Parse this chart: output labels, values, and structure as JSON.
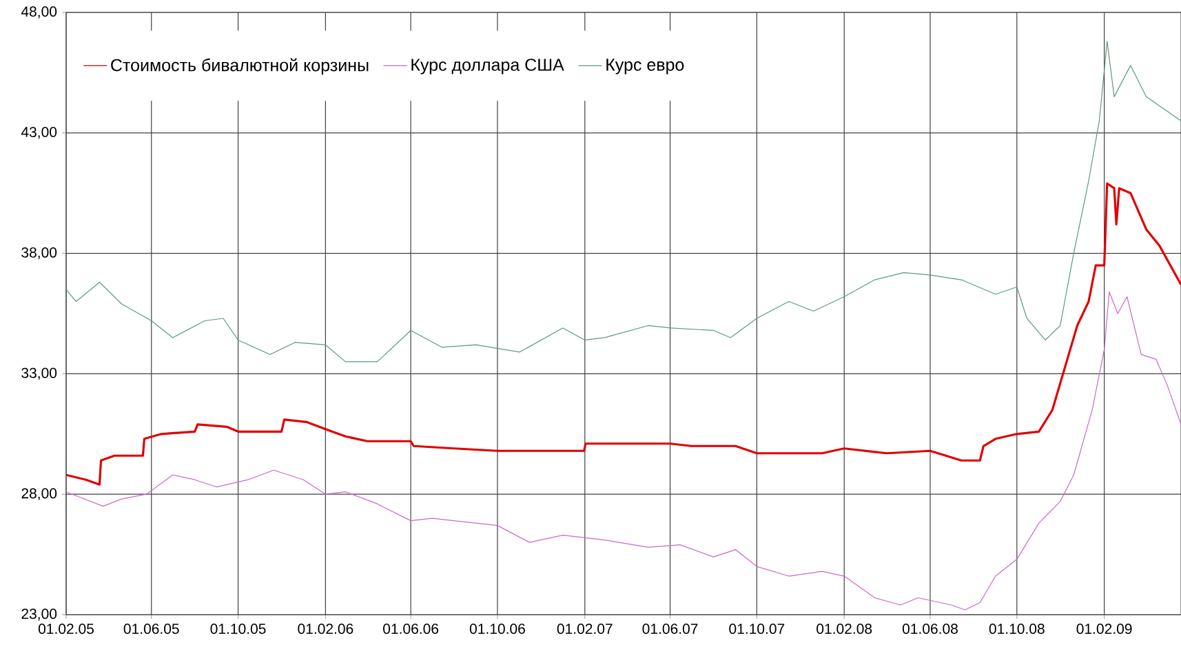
{
  "chart_data": {
    "type": "line",
    "series": [
      {
        "name": "Стоимость бивалютной корзины",
        "color": "#e00000",
        "x": [
          "2005-02-01",
          "2005-03-01",
          "2005-03-20",
          "2005-03-22",
          "2005-04-10",
          "2005-05-20",
          "2005-05-22",
          "2005-06-15",
          "2005-08-01",
          "2005-08-05",
          "2005-09-15",
          "2005-10-01",
          "2005-12-01",
          "2005-12-05",
          "2006-01-05",
          "2006-02-01",
          "2006-03-01",
          "2006-04-01",
          "2006-06-01",
          "2006-06-05",
          "2006-08-01",
          "2006-10-01",
          "2007-01-31",
          "2007-02-02",
          "2007-06-01",
          "2007-07-01",
          "2007-09-01",
          "2007-10-01",
          "2008-01-01",
          "2008-02-01",
          "2008-04-01",
          "2008-06-01",
          "2008-07-15",
          "2008-08-10",
          "2008-08-15",
          "2008-09-01",
          "2008-10-01",
          "2008-11-01",
          "2008-11-20",
          "2008-12-10",
          "2008-12-25",
          "2009-01-10",
          "2009-01-20",
          "2009-02-01",
          "2009-02-05",
          "2009-02-15",
          "2009-02-18",
          "2009-02-22",
          "2009-03-10",
          "2009-04-01",
          "2009-04-20",
          "2009-05-20"
        ],
        "values": [
          28.8,
          28.6,
          28.4,
          29.4,
          29.6,
          29.6,
          30.3,
          30.5,
          30.6,
          30.9,
          30.8,
          30.6,
          30.6,
          31.1,
          31.0,
          30.7,
          30.4,
          30.2,
          30.2,
          30.0,
          29.9,
          29.8,
          29.8,
          30.1,
          30.1,
          30.0,
          30.0,
          29.7,
          29.7,
          29.9,
          29.7,
          29.8,
          29.4,
          29.4,
          30.0,
          30.3,
          30.5,
          30.6,
          31.5,
          33.5,
          35.0,
          36.0,
          37.5,
          37.5,
          40.9,
          40.7,
          39.2,
          40.7,
          40.5,
          39.0,
          38.3,
          36.7
        ]
      },
      {
        "name": "Курс доллара США",
        "color": "#cc66cc",
        "x": [
          "2005-02-01",
          "2005-03-25",
          "2005-04-20",
          "2005-05-25",
          "2005-07-01",
          "2005-08-01",
          "2005-09-01",
          "2005-10-15",
          "2005-11-20",
          "2006-01-01",
          "2006-02-01",
          "2006-03-01",
          "2006-04-15",
          "2006-06-01",
          "2006-07-01",
          "2006-09-01",
          "2006-10-01",
          "2006-11-15",
          "2007-01-01",
          "2007-03-01",
          "2007-05-01",
          "2007-06-15",
          "2007-08-01",
          "2007-09-01",
          "2007-10-01",
          "2007-11-15",
          "2008-01-01",
          "2008-02-01",
          "2008-03-15",
          "2008-04-20",
          "2008-05-15",
          "2008-07-01",
          "2008-07-20",
          "2008-08-10",
          "2008-09-01",
          "2008-10-01",
          "2008-11-01",
          "2008-12-01",
          "2008-12-20",
          "2009-01-15",
          "2009-02-01",
          "2009-02-08",
          "2009-02-20",
          "2009-03-05",
          "2009-03-25",
          "2009-04-15",
          "2009-05-01",
          "2009-05-20"
        ],
        "values": [
          28.1,
          27.5,
          27.8,
          28.0,
          28.8,
          28.6,
          28.3,
          28.6,
          29.0,
          28.6,
          28.0,
          28.1,
          27.6,
          26.9,
          27.0,
          26.8,
          26.7,
          26.0,
          26.3,
          26.1,
          25.8,
          25.9,
          25.4,
          25.7,
          25.0,
          24.6,
          24.8,
          24.6,
          23.7,
          23.4,
          23.7,
          23.4,
          23.2,
          23.5,
          24.6,
          25.3,
          26.8,
          27.7,
          28.8,
          31.5,
          34.0,
          36.4,
          35.5,
          36.2,
          33.8,
          33.6,
          32.5,
          30.9
        ]
      },
      {
        "name": "Курс евро",
        "color": "#5a9a7a",
        "x": [
          "2005-02-01",
          "2005-02-15",
          "2005-03-20",
          "2005-04-20",
          "2005-06-01",
          "2005-07-01",
          "2005-08-15",
          "2005-09-10",
          "2005-10-01",
          "2005-11-15",
          "2005-12-20",
          "2006-02-01",
          "2006-03-01",
          "2006-04-15",
          "2006-06-01",
          "2006-07-15",
          "2006-09-01",
          "2006-11-01",
          "2007-01-01",
          "2007-02-01",
          "2007-03-01",
          "2007-05-01",
          "2007-06-01",
          "2007-08-01",
          "2007-08-25",
          "2007-10-01",
          "2007-11-15",
          "2007-12-20",
          "2008-02-01",
          "2008-03-15",
          "2008-04-25",
          "2008-06-01",
          "2008-07-15",
          "2008-09-01",
          "2008-10-01",
          "2008-10-15",
          "2008-11-10",
          "2008-12-01",
          "2008-12-20",
          "2009-01-10",
          "2009-01-25",
          "2009-02-05",
          "2009-02-15",
          "2009-03-10",
          "2009-04-01",
          "2009-05-20"
        ],
        "values": [
          36.5,
          36.0,
          36.8,
          35.9,
          35.2,
          34.5,
          35.2,
          35.3,
          34.4,
          33.8,
          34.3,
          34.2,
          33.5,
          33.5,
          34.8,
          34.1,
          34.2,
          33.9,
          34.9,
          34.4,
          34.5,
          35.0,
          34.9,
          34.8,
          34.5,
          35.3,
          36.0,
          35.6,
          36.2,
          36.9,
          37.2,
          37.1,
          36.9,
          36.3,
          36.6,
          35.3,
          34.4,
          35.0,
          38.0,
          41.0,
          43.5,
          46.8,
          44.5,
          45.8,
          44.5,
          43.5
        ]
      }
    ],
    "xlim": [
      "2005-02-01",
      "2009-05-20"
    ],
    "xticks": [
      {
        "value": "2005-02-01",
        "label": "01.02.05"
      },
      {
        "value": "2005-06-01",
        "label": "01.06.05"
      },
      {
        "value": "2005-10-01",
        "label": "01.10.05"
      },
      {
        "value": "2006-02-01",
        "label": "01.02.06"
      },
      {
        "value": "2006-06-01",
        "label": "01.06.06"
      },
      {
        "value": "2006-10-01",
        "label": "01.10.06"
      },
      {
        "value": "2007-02-01",
        "label": "01.02.07"
      },
      {
        "value": "2007-06-01",
        "label": "01.06.07"
      },
      {
        "value": "2007-10-01",
        "label": "01.10.07"
      },
      {
        "value": "2008-02-01",
        "label": "01.02.08"
      },
      {
        "value": "2008-06-01",
        "label": "01.06.08"
      },
      {
        "value": "2008-10-01",
        "label": "01.10.08"
      },
      {
        "value": "2009-02-01",
        "label": "01.02.09"
      }
    ],
    "ylim": [
      23,
      48
    ],
    "yticks": [
      {
        "value": 23,
        "label": "23,00"
      },
      {
        "value": 28,
        "label": "28,00"
      },
      {
        "value": 33,
        "label": "33,00"
      },
      {
        "value": 38,
        "label": "38,00"
      },
      {
        "value": 43,
        "label": "43,00"
      },
      {
        "value": 48,
        "label": "48,00"
      }
    ],
    "grid": true,
    "legend": "top left",
    "marker": "none",
    "line_style": "solid"
  }
}
